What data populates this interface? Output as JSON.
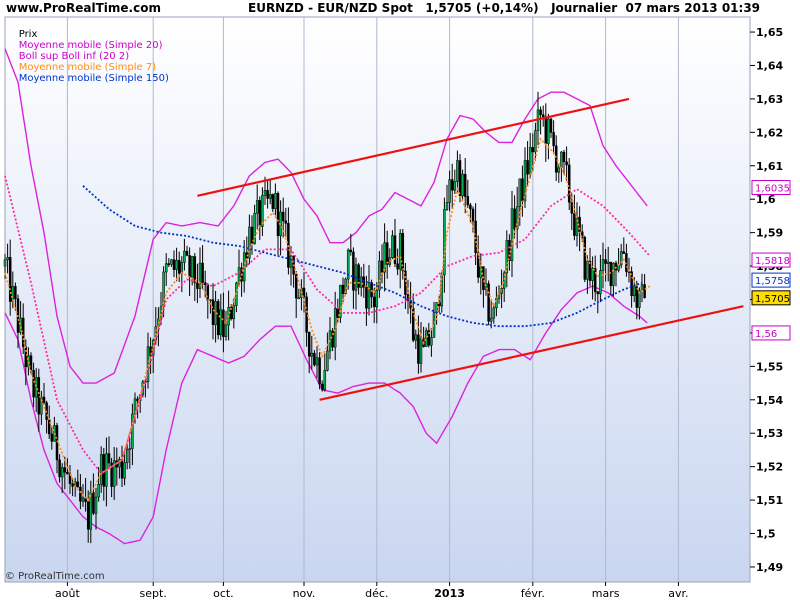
{
  "header": {
    "site": "www.ProRealTime.com",
    "title": "EURNZD - EUR/NZD Spot   1,5705 (+0,14%)   Journalier  07 mars 2013 01:39"
  },
  "legend": [
    {
      "label": "Prix",
      "color": "#000000"
    },
    {
      "label": "Moyenne mobile (Simple 20)",
      "color": "#cc00cc"
    },
    {
      "label": "Boll sup Boll inf (20 2)",
      "color": "#cc00cc"
    },
    {
      "label": "Moyenne mobile (Simple 7)",
      "color": "#ff8c1a"
    },
    {
      "label": "Moyenne mobile (Simple 150)",
      "color": "#0033cc"
    }
  ],
  "copyright": "© ProRealTime.com",
  "chart_data": {
    "type": "candlestick",
    "y_ticks": [
      "1,65",
      "1,64",
      "1,63",
      "1,62",
      "1,61",
      "1,6",
      "1,59",
      "1,58",
      "1,57",
      "1,56",
      "1,55",
      "1,54",
      "1,53",
      "1,52",
      "1,51",
      "1,5",
      "1,49"
    ],
    "y_tick_values": [
      1.65,
      1.64,
      1.63,
      1.62,
      1.61,
      1.6,
      1.59,
      1.58,
      1.57,
      1.56,
      1.55,
      1.54,
      1.53,
      1.52,
      1.51,
      1.5,
      1.49
    ],
    "bold_ticks": [
      1.65,
      1.6,
      1.55,
      1.5
    ],
    "ylim": [
      1.4855,
      1.6545
    ],
    "x_ticks": [
      "août",
      "sept.",
      "oct.",
      "nov.",
      "déc.",
      "2013",
      "févr.",
      "mars",
      "avr."
    ],
    "x_tick_index": [
      24,
      57,
      84,
      115,
      143,
      171,
      203,
      231,
      259
    ],
    "n_days": 285,
    "price_path": [
      [
        0,
        1.58
      ],
      [
        6,
        1.56
      ],
      [
        10,
        1.545
      ],
      [
        20,
        1.525
      ],
      [
        27,
        1.51
      ],
      [
        32,
        1.505
      ],
      [
        37,
        1.52
      ],
      [
        45,
        1.52
      ],
      [
        51,
        1.54
      ],
      [
        57,
        1.56
      ],
      [
        62,
        1.578
      ],
      [
        68,
        1.58
      ],
      [
        75,
        1.575
      ],
      [
        80,
        1.565
      ],
      [
        85,
        1.56
      ],
      [
        89,
        1.575
      ],
      [
        94,
        1.59
      ],
      [
        98,
        1.595
      ],
      [
        103,
        1.6
      ],
      [
        107,
        1.59
      ],
      [
        112,
        1.575
      ],
      [
        118,
        1.555
      ],
      [
        122,
        1.548
      ],
      [
        127,
        1.565
      ],
      [
        132,
        1.58
      ],
      [
        137,
        1.575
      ],
      [
        142,
        1.57
      ],
      [
        147,
        1.585
      ],
      [
        152,
        1.585
      ],
      [
        157,
        1.56
      ],
      [
        161,
        1.553
      ],
      [
        166,
        1.565
      ],
      [
        170,
        1.6
      ],
      [
        174,
        1.61
      ],
      [
        180,
        1.59
      ],
      [
        184,
        1.57
      ],
      [
        188,
        1.565
      ],
      [
        192,
        1.58
      ],
      [
        196,
        1.595
      ],
      [
        201,
        1.61
      ],
      [
        206,
        1.625
      ],
      [
        211,
        1.615
      ],
      [
        216,
        1.605
      ],
      [
        220,
        1.59
      ],
      [
        224,
        1.578
      ],
      [
        228,
        1.575
      ],
      [
        233,
        1.58
      ],
      [
        238,
        1.585
      ],
      [
        241,
        1.575
      ],
      [
        244,
        1.568
      ],
      [
        246,
        1.5705
      ]
    ],
    "series": [
      {
        "name": "Moyenne mobile (Simple 20)",
        "color": "#ff2ba0",
        "style": "dotted",
        "points": [
          [
            0,
            1.607
          ],
          [
            10,
            1.575
          ],
          [
            20,
            1.54
          ],
          [
            30,
            1.525
          ],
          [
            37,
            1.518
          ],
          [
            45,
            1.522
          ],
          [
            55,
            1.548
          ],
          [
            62,
            1.57
          ],
          [
            70,
            1.576
          ],
          [
            80,
            1.574
          ],
          [
            90,
            1.578
          ],
          [
            100,
            1.585
          ],
          [
            110,
            1.585
          ],
          [
            120,
            1.573
          ],
          [
            130,
            1.566
          ],
          [
            140,
            1.566
          ],
          [
            150,
            1.568
          ],
          [
            160,
            1.572
          ],
          [
            170,
            1.58
          ],
          [
            180,
            1.583
          ],
          [
            190,
            1.584
          ],
          [
            200,
            1.588
          ],
          [
            210,
            1.598
          ],
          [
            220,
            1.603
          ],
          [
            230,
            1.598
          ],
          [
            240,
            1.59
          ],
          [
            248,
            1.583
          ]
        ]
      },
      {
        "name": "Moyenne mobile (Simple 7)",
        "color": "#ff8c1a",
        "style": "dotted",
        "points": [
          [
            0,
            1.578
          ],
          [
            6,
            1.562
          ],
          [
            10,
            1.548
          ],
          [
            20,
            1.528
          ],
          [
            27,
            1.514
          ],
          [
            32,
            1.51
          ],
          [
            37,
            1.518
          ],
          [
            45,
            1.522
          ],
          [
            51,
            1.538
          ],
          [
            57,
            1.556
          ],
          [
            62,
            1.572
          ],
          [
            68,
            1.578
          ],
          [
            75,
            1.575
          ],
          [
            80,
            1.567
          ],
          [
            85,
            1.563
          ],
          [
            89,
            1.572
          ],
          [
            94,
            1.585
          ],
          [
            98,
            1.592
          ],
          [
            103,
            1.596
          ],
          [
            107,
            1.591
          ],
          [
            112,
            1.578
          ],
          [
            118,
            1.561
          ],
          [
            122,
            1.553
          ],
          [
            127,
            1.561
          ],
          [
            132,
            1.575
          ],
          [
            137,
            1.575
          ],
          [
            142,
            1.572
          ],
          [
            147,
            1.581
          ],
          [
            152,
            1.583
          ],
          [
            157,
            1.566
          ],
          [
            161,
            1.557
          ],
          [
            166,
            1.564
          ],
          [
            170,
            1.59
          ],
          [
            174,
            1.603
          ],
          [
            180,
            1.592
          ],
          [
            184,
            1.576
          ],
          [
            188,
            1.568
          ],
          [
            192,
            1.576
          ],
          [
            196,
            1.59
          ],
          [
            201,
            1.604
          ],
          [
            206,
            1.618
          ],
          [
            211,
            1.614
          ],
          [
            216,
            1.606
          ],
          [
            220,
            1.594
          ],
          [
            224,
            1.582
          ],
          [
            228,
            1.577
          ],
          [
            233,
            1.578
          ],
          [
            238,
            1.582
          ],
          [
            241,
            1.577
          ],
          [
            244,
            1.572
          ],
          [
            248,
            1.574
          ]
        ]
      },
      {
        "name": "Moyenne mobile (Simple 150)",
        "color": "#0033cc",
        "style": "dotted",
        "points": [
          [
            30,
            1.604
          ],
          [
            40,
            1.597
          ],
          [
            50,
            1.592
          ],
          [
            60,
            1.59
          ],
          [
            70,
            1.589
          ],
          [
            80,
            1.587
          ],
          [
            90,
            1.586
          ],
          [
            100,
            1.584
          ],
          [
            110,
            1.582
          ],
          [
            120,
            1.58
          ],
          [
            130,
            1.578
          ],
          [
            140,
            1.575
          ],
          [
            150,
            1.572
          ],
          [
            160,
            1.568
          ],
          [
            170,
            1.565
          ],
          [
            180,
            1.563
          ],
          [
            190,
            1.562
          ],
          [
            200,
            1.562
          ],
          [
            210,
            1.563
          ],
          [
            220,
            1.566
          ],
          [
            230,
            1.57
          ],
          [
            238,
            1.573
          ],
          [
            245,
            1.575
          ]
        ]
      },
      {
        "name": "Boll sup",
        "color": "#dd22dd",
        "style": "solid",
        "points": [
          [
            0,
            1.645
          ],
          [
            5,
            1.635
          ],
          [
            10,
            1.61
          ],
          [
            15,
            1.59
          ],
          [
            20,
            1.565
          ],
          [
            25,
            1.55
          ],
          [
            30,
            1.545
          ],
          [
            35,
            1.545
          ],
          [
            42,
            1.548
          ],
          [
            50,
            1.565
          ],
          [
            57,
            1.588
          ],
          [
            62,
            1.593
          ],
          [
            68,
            1.592
          ],
          [
            75,
            1.593
          ],
          [
            82,
            1.592
          ],
          [
            88,
            1.598
          ],
          [
            94,
            1.607
          ],
          [
            100,
            1.611
          ],
          [
            105,
            1.612
          ],
          [
            110,
            1.608
          ],
          [
            115,
            1.6
          ],
          [
            120,
            1.595
          ],
          [
            125,
            1.587
          ],
          [
            130,
            1.587
          ],
          [
            135,
            1.59
          ],
          [
            140,
            1.595
          ],
          [
            145,
            1.597
          ],
          [
            150,
            1.602
          ],
          [
            155,
            1.6
          ],
          [
            160,
            1.598
          ],
          [
            165,
            1.605
          ],
          [
            170,
            1.618
          ],
          [
            175,
            1.625
          ],
          [
            180,
            1.624
          ],
          [
            185,
            1.62
          ],
          [
            190,
            1.617
          ],
          [
            195,
            1.617
          ],
          [
            200,
            1.624
          ],
          [
            205,
            1.63
          ],
          [
            210,
            1.632
          ],
          [
            215,
            1.632
          ],
          [
            220,
            1.63
          ],
          [
            225,
            1.628
          ],
          [
            230,
            1.616
          ],
          [
            235,
            1.61
          ],
          [
            240,
            1.605
          ],
          [
            247,
            1.598
          ]
        ]
      },
      {
        "name": "Boll inf",
        "color": "#dd22dd",
        "style": "solid",
        "points": [
          [
            0,
            1.566
          ],
          [
            5,
            1.558
          ],
          [
            10,
            1.54
          ],
          [
            15,
            1.525
          ],
          [
            20,
            1.515
          ],
          [
            25,
            1.51
          ],
          [
            30,
            1.505
          ],
          [
            35,
            1.502
          ],
          [
            40,
            1.5
          ],
          [
            46,
            1.497
          ],
          [
            52,
            1.498
          ],
          [
            57,
            1.505
          ],
          [
            62,
            1.525
          ],
          [
            68,
            1.545
          ],
          [
            74,
            1.555
          ],
          [
            80,
            1.553
          ],
          [
            86,
            1.551
          ],
          [
            92,
            1.553
          ],
          [
            98,
            1.558
          ],
          [
            104,
            1.562
          ],
          [
            110,
            1.562
          ],
          [
            116,
            1.552
          ],
          [
            122,
            1.543
          ],
          [
            128,
            1.542
          ],
          [
            134,
            1.544
          ],
          [
            140,
            1.545
          ],
          [
            146,
            1.545
          ],
          [
            152,
            1.542
          ],
          [
            157,
            1.538
          ],
          [
            162,
            1.53
          ],
          [
            166,
            1.527
          ],
          [
            172,
            1.535
          ],
          [
            178,
            1.545
          ],
          [
            184,
            1.553
          ],
          [
            190,
            1.555
          ],
          [
            196,
            1.555
          ],
          [
            202,
            1.552
          ],
          [
            208,
            1.56
          ],
          [
            214,
            1.567
          ],
          [
            220,
            1.572
          ],
          [
            226,
            1.574
          ],
          [
            232,
            1.572
          ],
          [
            238,
            1.568
          ],
          [
            244,
            1.565
          ],
          [
            247,
            1.563
          ]
        ]
      },
      {
        "name": "channel-upper",
        "color": "#ee1111",
        "style": "solid",
        "points": [
          [
            74,
            1.601
          ],
          [
            240,
            1.63
          ]
        ]
      },
      {
        "name": "channel-lower",
        "color": "#ee1111",
        "style": "solid",
        "points": [
          [
            121,
            1.54
          ],
          [
            284,
            1.568
          ]
        ]
      }
    ],
    "price_labels": [
      {
        "text": "1,6035",
        "value": 1.6035,
        "color": "#cc00cc",
        "bg": "#ffffff"
      },
      {
        "text": "1,5818",
        "value": 1.5818,
        "color": "#cc00cc",
        "bg": "#ffffff"
      },
      {
        "text": "1,5758",
        "value": 1.5758,
        "color": "#0033cc",
        "bg": "#ffffff"
      },
      {
        "text": "1,5705",
        "value": 1.5705,
        "color": "#000000",
        "bg": "#ffdd00"
      },
      {
        "text": "1,56",
        "value": 1.56,
        "color": "#cc00cc",
        "bg": "#ffffff"
      }
    ]
  }
}
